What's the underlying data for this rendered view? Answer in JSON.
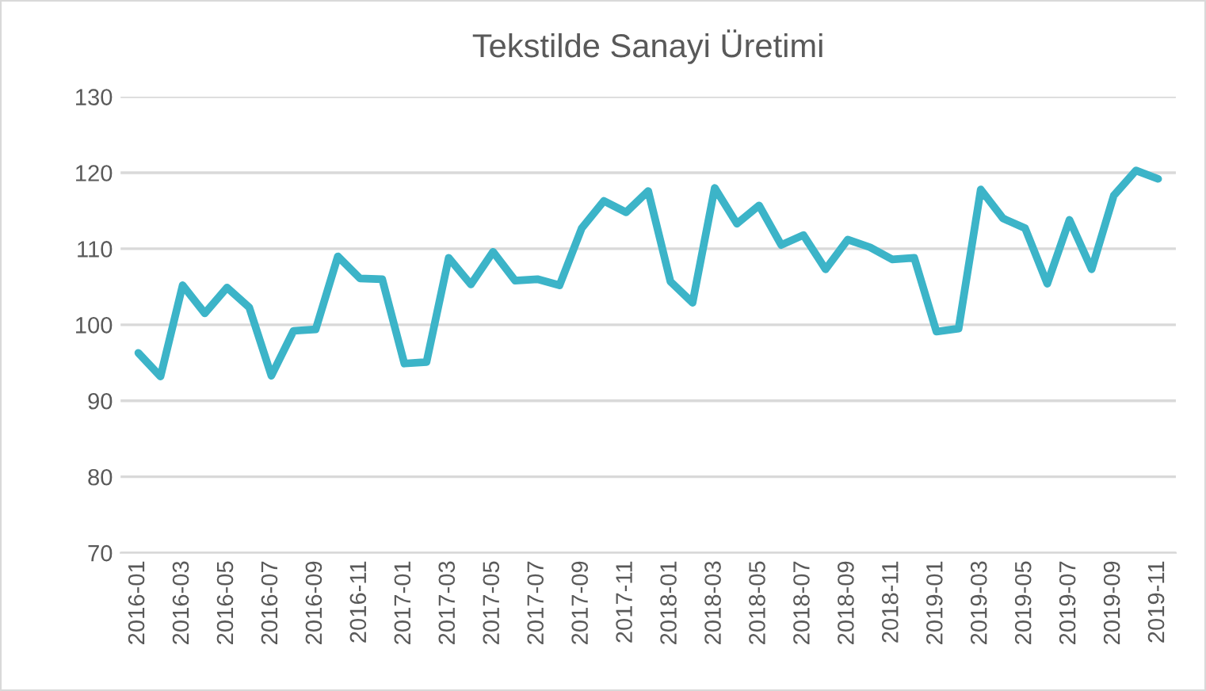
{
  "chart_data": {
    "type": "line",
    "title": "Tekstilde Sanayi Üretimi",
    "categories": [
      "2016-01",
      null,
      "2016-03",
      null,
      "2016-05",
      null,
      "2016-07",
      null,
      "2016-09",
      null,
      "2016-11",
      null,
      "2017-01",
      null,
      "2017-03",
      null,
      "2017-05",
      null,
      "2017-07",
      null,
      "2017-09",
      null,
      "2017-11",
      null,
      "2018-01",
      null,
      "2018-03",
      null,
      "2018-05",
      null,
      "2018-07",
      null,
      "2018-09",
      null,
      "2018-11",
      null,
      "2019-01",
      null,
      "2019-03",
      null,
      "2019-05",
      null,
      "2019-07",
      null,
      "2019-09",
      null,
      "2019-11"
    ],
    "series": [
      {
        "color": "#3cb4c8",
        "values": [
          96.3,
          93.2,
          105.2,
          101.5,
          104.9,
          102.3,
          93.3,
          99.2,
          99.4,
          109,
          106.1,
          106,
          94.9,
          95.1,
          108.8,
          105.3,
          109.6,
          105.8,
          106,
          105.2,
          112.7,
          116.3,
          114.8,
          117.6,
          105.7,
          102.9,
          118,
          113.3,
          115.7,
          110.5,
          111.8,
          107.3,
          111.2,
          110.2,
          108.6,
          108.8,
          99.1,
          99.5,
          117.8,
          114,
          112.7,
          105.4,
          113.8,
          107.3,
          117,
          120.3,
          119.2
        ]
      }
    ],
    "ylim": [
      70,
      130
    ],
    "yticks": [
      70,
      80,
      90,
      100,
      110,
      120,
      130
    ],
    "grid": "y",
    "legend": false,
    "marker": "none",
    "line_style": "solid"
  }
}
